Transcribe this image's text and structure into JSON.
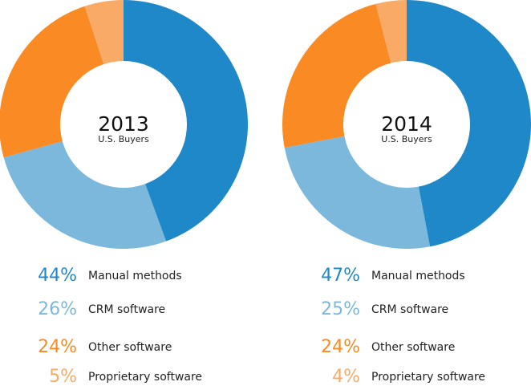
{
  "chart_data": [
    {
      "type": "pie",
      "variant": "donut",
      "title": "2013",
      "subtitle": "U.S. Buyers",
      "categories": [
        "Manual methods",
        "CRM software",
        "Other software",
        "Proprietary software"
      ],
      "values": [
        44,
        26,
        24,
        5
      ],
      "labels": [
        "44%",
        "26%",
        "24%",
        "5%"
      ],
      "colors": [
        "#1f88c9",
        "#7bb8db",
        "#f98a24",
        "#f9aa66"
      ],
      "legend": "bottom"
    },
    {
      "type": "pie",
      "variant": "donut",
      "title": "2014",
      "subtitle": "U.S. Buyers",
      "categories": [
        "Manual methods",
        "CRM software",
        "Other software",
        "Proprietary software"
      ],
      "values": [
        47,
        25,
        24,
        4
      ],
      "labels": [
        "47%",
        "25%",
        "24%",
        "4%"
      ],
      "colors": [
        "#1f88c9",
        "#7bb8db",
        "#f98a24",
        "#f9aa66"
      ],
      "legend": "bottom"
    }
  ]
}
